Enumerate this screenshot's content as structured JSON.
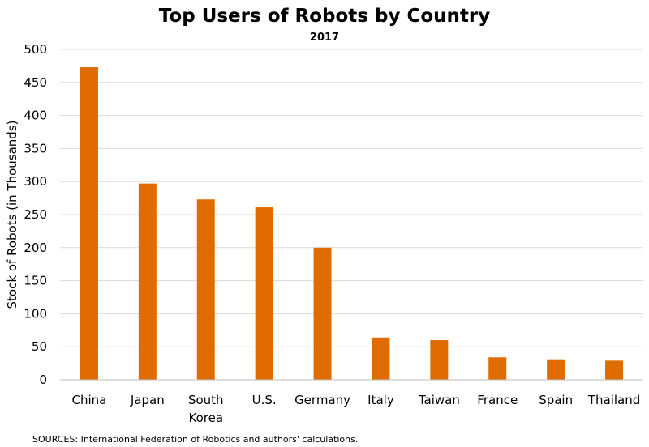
{
  "chart_data": {
    "type": "bar",
    "title": "Top Users of Robots by Country",
    "subtitle": "2017",
    "ylabel": "Stock of Robots (in Thousands)",
    "xlabel": "",
    "categories": [
      [
        "China"
      ],
      [
        "Japan"
      ],
      [
        "South",
        "Korea"
      ],
      [
        "U.S."
      ],
      [
        "Germany"
      ],
      [
        "Italy"
      ],
      [
        "Taiwan"
      ],
      [
        "France"
      ],
      [
        "Spain"
      ],
      [
        "Thailand"
      ]
    ],
    "values": [
      473,
      297,
      273,
      261,
      200,
      64,
      60,
      34,
      31,
      29
    ],
    "ylim": [
      0,
      500
    ],
    "yticks": [
      "0",
      "50",
      "100",
      "150",
      "200",
      "250",
      "300",
      "350",
      "400",
      "450",
      "500"
    ],
    "grid": true,
    "bar_color": "#E06C00",
    "grid_color": "#D9D9D9",
    "source": "SOURCES: International  Federation of Robotics and authors' calculations."
  }
}
